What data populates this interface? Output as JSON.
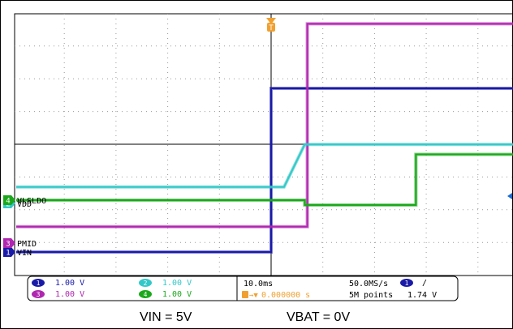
{
  "chart_data": {
    "type": "line",
    "title": "",
    "xlabel": "",
    "ylabel": "",
    "x_unit": "ms",
    "x_range": [
      -50,
      50
    ],
    "grid": true,
    "series": [
      {
        "name": "VIN",
        "channel": "1",
        "color": "#1a1aa8",
        "scale_v_per_div": 1.0,
        "x": [
          -50,
          0,
          0,
          50
        ],
        "y": [
          0,
          0,
          5,
          5
        ]
      },
      {
        "name": "PMID",
        "channel": "3",
        "color": "#b026b0",
        "scale_v_per_div": 1.0,
        "x": [
          -50,
          7,
          7,
          50
        ],
        "y": [
          0.5,
          0.5,
          6.7,
          6.7
        ]
      },
      {
        "name": "VDD",
        "channel": "2",
        "color": "#33c8c8",
        "scale_v_per_div": 1.0,
        "x": [
          -50,
          2.5,
          6.5,
          50
        ],
        "y": [
          0.5,
          0.5,
          1.8,
          1.8
        ]
      },
      {
        "name": "VLSLDO",
        "channel": "4",
        "color": "#1aa81a",
        "scale_v_per_div": 1.0,
        "x": [
          -50,
          6.5,
          6.5,
          28,
          28,
          50
        ],
        "y": [
          0,
          0,
          -0.15,
          -0.15,
          1.4,
          1.4
        ]
      }
    ]
  },
  "trigger": {
    "marker": "T",
    "level_channel": "1",
    "slope": "/",
    "level": "1.74 V",
    "offset": "0.000000 s"
  },
  "channel_labels": [
    {
      "num": "2",
      "name": "VDD",
      "color": "#33c8c8"
    },
    {
      "num": "4",
      "name": "VLSLDO",
      "color": "#1aa81a"
    },
    {
      "num": "3",
      "name": "PMID",
      "color": "#b026b0"
    },
    {
      "num": "1",
      "name": "VIN",
      "color": "#1a1aa8"
    }
  ],
  "scale_box": [
    {
      "num": "1",
      "value": "1.00 V",
      "color": "#1a1aa8"
    },
    {
      "num": "2",
      "value": "1.00 V",
      "color": "#33c8c8"
    },
    {
      "num": "3",
      "value": "1.00 V",
      "color": "#b026b0"
    },
    {
      "num": "4",
      "value": "1.00 V",
      "color": "#1aa81a"
    }
  ],
  "timebase": {
    "time_div": "10.0ms",
    "sample_rate": "50.0MS/s",
    "points": "5M points"
  },
  "captions": {
    "left": "VIN = 5V",
    "right": "VBAT = 0V"
  }
}
